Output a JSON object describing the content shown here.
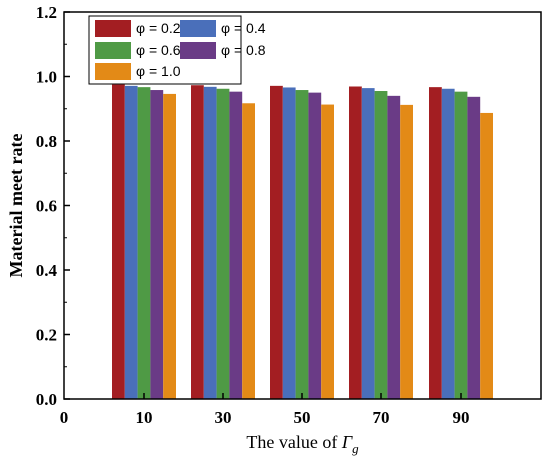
{
  "chart_data": {
    "type": "bar",
    "title": "",
    "xlabel": "The value of ",
    "xlabel_symbol": "Γ",
    "xlabel_subscript": "g",
    "ylabel": "Material meet rate",
    "categories": [
      "10",
      "30",
      "50",
      "70",
      "90"
    ],
    "x_ticks": [
      "0",
      "10",
      "30",
      "50",
      "70",
      "90"
    ],
    "y_ticks": [
      "0.0",
      "0.2",
      "0.4",
      "0.6",
      "0.8",
      "1.0",
      "1.2"
    ],
    "ylim": [
      0,
      1.2
    ],
    "grid": false,
    "legend_position": "top-left",
    "series": [
      {
        "name": "φ = 0.2",
        "color": "#a31e22",
        "values": [
          0.975,
          0.973,
          0.971,
          0.969,
          0.967
        ]
      },
      {
        "name": "φ = 0.4",
        "color": "#4a6fba",
        "values": [
          0.971,
          0.968,
          0.966,
          0.964,
          0.962
        ]
      },
      {
        "name": "φ = 0.6",
        "color": "#4f9a45",
        "values": [
          0.967,
          0.962,
          0.958,
          0.955,
          0.953
        ]
      },
      {
        "name": "φ = 0.8",
        "color": "#6a3b86",
        "values": [
          0.958,
          0.953,
          0.95,
          0.94,
          0.937
        ]
      },
      {
        "name": "φ = 1.0",
        "color": "#e38a17",
        "values": [
          0.946,
          0.917,
          0.913,
          0.912,
          0.887
        ]
      }
    ]
  }
}
